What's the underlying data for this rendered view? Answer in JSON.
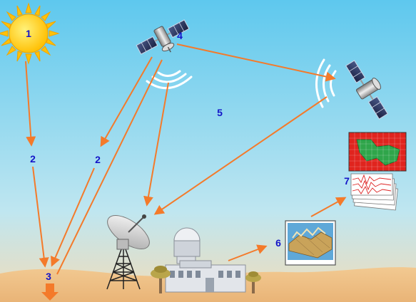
{
  "labels": {
    "sun": "1",
    "solar_path": "2",
    "reflected_path": "2",
    "surface": "3",
    "satellite": "4",
    "atmosphere": "5",
    "processing": "6",
    "products": "7"
  },
  "colors": {
    "sky": "#62c9ed",
    "ground": "#f2c991",
    "arrow": "#f47a2a",
    "label": "#1414c8",
    "sun": "#ffd21e",
    "map_red": "#e0241e",
    "map_green": "#2fa54a"
  }
}
